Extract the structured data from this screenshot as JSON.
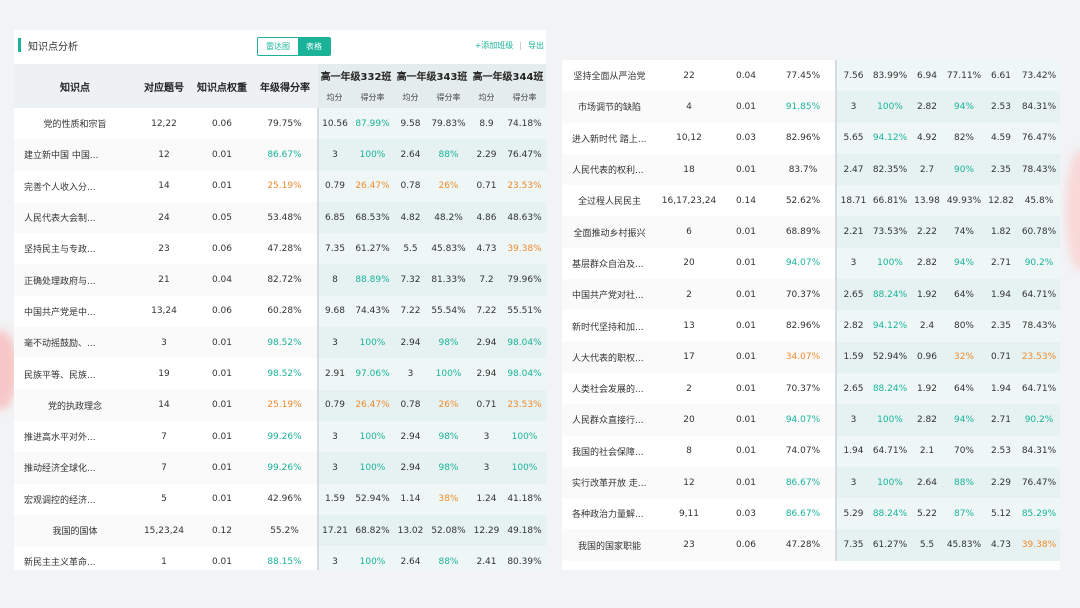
{
  "header": {
    "title": "知识点分析",
    "toggle": {
      "radar": "雷达图",
      "table": "表格"
    },
    "add_class": "+添加班级",
    "divider": "|",
    "export": "导出"
  },
  "columns": {
    "knowledge_point": "知识点",
    "question_no": "对应题号",
    "weight": "知识点权重",
    "grade_rate": "年级得分率",
    "classes": [
      "高一年级332班",
      "高一年级343班",
      "高一年级344班"
    ],
    "avg": "均分",
    "rate": "得分率"
  },
  "left_rows": [
    {
      "name": "党的性质和宗旨",
      "q": "12,22",
      "w": "0.06",
      "rate": "79.75%",
      "c": [
        [
          "10.56",
          "87.99%"
        ],
        [
          "9.58",
          "79.83%"
        ],
        [
          "8.9",
          "74.18%"
        ]
      ]
    },
    {
      "name": "建立新中国 中国...",
      "q": "12",
      "w": "0.01",
      "rate": "86.67%",
      "c": [
        [
          "3",
          "100%"
        ],
        [
          "2.64",
          "88%"
        ],
        [
          "2.29",
          "76.47%"
        ]
      ]
    },
    {
      "name": "完善个人收入分...",
      "q": "14",
      "w": "0.01",
      "rate": "25.19%",
      "c": [
        [
          "0.79",
          "26.47%"
        ],
        [
          "0.78",
          "26%"
        ],
        [
          "0.71",
          "23.53%"
        ]
      ]
    },
    {
      "name": "人民代表大会制...",
      "q": "24",
      "w": "0.05",
      "rate": "53.48%",
      "c": [
        [
          "6.85",
          "68.53%"
        ],
        [
          "4.82",
          "48.2%"
        ],
        [
          "4.86",
          "48.63%"
        ]
      ]
    },
    {
      "name": "坚持民主与专政...",
      "q": "23",
      "w": "0.06",
      "rate": "47.28%",
      "c": [
        [
          "7.35",
          "61.27%"
        ],
        [
          "5.5",
          "45.83%"
        ],
        [
          "4.73",
          "39.38%"
        ]
      ]
    },
    {
      "name": "正确处理政府与...",
      "q": "21",
      "w": "0.04",
      "rate": "82.72%",
      "c": [
        [
          "8",
          "88.89%"
        ],
        [
          "7.32",
          "81.33%"
        ],
        [
          "7.2",
          "79.96%"
        ]
      ]
    },
    {
      "name": "中国共产党是中...",
      "q": "13,24",
      "w": "0.06",
      "rate": "60.28%",
      "c": [
        [
          "9.68",
          "74.43%"
        ],
        [
          "7.22",
          "55.54%"
        ],
        [
          "7.22",
          "55.51%"
        ]
      ]
    },
    {
      "name": "毫不动摇鼓励、...",
      "q": "3",
      "w": "0.01",
      "rate": "98.52%",
      "c": [
        [
          "3",
          "100%"
        ],
        [
          "2.94",
          "98%"
        ],
        [
          "2.94",
          "98.04%"
        ]
      ]
    },
    {
      "name": "民族平等、民族...",
      "q": "19",
      "w": "0.01",
      "rate": "98.52%",
      "c": [
        [
          "2.91",
          "97.06%"
        ],
        [
          "3",
          "100%"
        ],
        [
          "2.94",
          "98.04%"
        ]
      ]
    },
    {
      "name": "党的执政理念",
      "q": "14",
      "w": "0.01",
      "rate": "25.19%",
      "c": [
        [
          "0.79",
          "26.47%"
        ],
        [
          "0.78",
          "26%"
        ],
        [
          "0.71",
          "23.53%"
        ]
      ]
    },
    {
      "name": "推进高水平对外...",
      "q": "7",
      "w": "0.01",
      "rate": "99.26%",
      "c": [
        [
          "3",
          "100%"
        ],
        [
          "2.94",
          "98%"
        ],
        [
          "3",
          "100%"
        ]
      ]
    },
    {
      "name": "推动经济全球化...",
      "q": "7",
      "w": "0.01",
      "rate": "99.26%",
      "c": [
        [
          "3",
          "100%"
        ],
        [
          "2.94",
          "98%"
        ],
        [
          "3",
          "100%"
        ]
      ]
    },
    {
      "name": "宏观调控的经济...",
      "q": "5",
      "w": "0.01",
      "rate": "42.96%",
      "c": [
        [
          "1.59",
          "52.94%"
        ],
        [
          "1.14",
          "38%"
        ],
        [
          "1.24",
          "41.18%"
        ]
      ]
    },
    {
      "name": "我国的国体",
      "q": "15,23,24",
      "w": "0.12",
      "rate": "55.2%",
      "c": [
        [
          "17.21",
          "68.82%"
        ],
        [
          "13.02",
          "52.08%"
        ],
        [
          "12.29",
          "49.18%"
        ]
      ]
    },
    {
      "name": "新民主主义革命...",
      "q": "1",
      "w": "0.01",
      "rate": "88.15%",
      "c": [
        [
          "3",
          "100%"
        ],
        [
          "2.64",
          "88%"
        ],
        [
          "2.41",
          "80.39%"
        ]
      ]
    }
  ],
  "right_rows": [
    {
      "name": "坚持全面从严治党",
      "q": "22",
      "w": "0.04",
      "rate": "77.45%",
      "c": [
        [
          "7.56",
          "83.99%"
        ],
        [
          "6.94",
          "77.11%"
        ],
        [
          "6.61",
          "73.42%"
        ]
      ]
    },
    {
      "name": "市场调节的缺陷",
      "q": "4",
      "w": "0.01",
      "rate": "91.85%",
      "c": [
        [
          "3",
          "100%"
        ],
        [
          "2.82",
          "94%"
        ],
        [
          "2.53",
          "84.31%"
        ]
      ]
    },
    {
      "name": "进入新时代 踏上...",
      "q": "10,12",
      "w": "0.03",
      "rate": "82.96%",
      "c": [
        [
          "5.65",
          "94.12%"
        ],
        [
          "4.92",
          "82%"
        ],
        [
          "4.59",
          "76.47%"
        ]
      ]
    },
    {
      "name": "人民代表的权利...",
      "q": "18",
      "w": "0.01",
      "rate": "83.7%",
      "c": [
        [
          "2.47",
          "82.35%"
        ],
        [
          "2.7",
          "90%"
        ],
        [
          "2.35",
          "78.43%"
        ]
      ]
    },
    {
      "name": "全过程人民民主",
      "q": "16,17,23,24",
      "w": "0.14",
      "rate": "52.62%",
      "c": [
        [
          "18.71",
          "66.81%"
        ],
        [
          "13.98",
          "49.93%"
        ],
        [
          "12.82",
          "45.8%"
        ]
      ]
    },
    {
      "name": "全面推动乡村振兴",
      "q": "6",
      "w": "0.01",
      "rate": "68.89%",
      "c": [
        [
          "2.21",
          "73.53%"
        ],
        [
          "2.22",
          "74%"
        ],
        [
          "1.82",
          "60.78%"
        ]
      ]
    },
    {
      "name": "基层群众自治及...",
      "q": "20",
      "w": "0.01",
      "rate": "94.07%",
      "c": [
        [
          "3",
          "100%"
        ],
        [
          "2.82",
          "94%"
        ],
        [
          "2.71",
          "90.2%"
        ]
      ]
    },
    {
      "name": "中国共产党对社...",
      "q": "2",
      "w": "0.01",
      "rate": "70.37%",
      "c": [
        [
          "2.65",
          "88.24%"
        ],
        [
          "1.92",
          "64%"
        ],
        [
          "1.94",
          "64.71%"
        ]
      ]
    },
    {
      "name": "新时代坚持和加...",
      "q": "13",
      "w": "0.01",
      "rate": "82.96%",
      "c": [
        [
          "2.82",
          "94.12%"
        ],
        [
          "2.4",
          "80%"
        ],
        [
          "2.35",
          "78.43%"
        ]
      ]
    },
    {
      "name": "人大代表的职权...",
      "q": "17",
      "w": "0.01",
      "rate": "34.07%",
      "c": [
        [
          "1.59",
          "52.94%"
        ],
        [
          "0.96",
          "32%"
        ],
        [
          "0.71",
          "23.53%"
        ]
      ]
    },
    {
      "name": "人类社会发展的...",
      "q": "2",
      "w": "0.01",
      "rate": "70.37%",
      "c": [
        [
          "2.65",
          "88.24%"
        ],
        [
          "1.92",
          "64%"
        ],
        [
          "1.94",
          "64.71%"
        ]
      ]
    },
    {
      "name": "人民群众直接行...",
      "q": "20",
      "w": "0.01",
      "rate": "94.07%",
      "c": [
        [
          "3",
          "100%"
        ],
        [
          "2.82",
          "94%"
        ],
        [
          "2.71",
          "90.2%"
        ]
      ]
    },
    {
      "name": "我国的社会保障...",
      "q": "8",
      "w": "0.01",
      "rate": "74.07%",
      "c": [
        [
          "1.94",
          "64.71%"
        ],
        [
          "2.1",
          "70%"
        ],
        [
          "2.53",
          "84.31%"
        ]
      ]
    },
    {
      "name": "实行改革开放 走...",
      "q": "12",
      "w": "0.01",
      "rate": "86.67%",
      "c": [
        [
          "3",
          "100%"
        ],
        [
          "2.64",
          "88%"
        ],
        [
          "2.29",
          "76.47%"
        ]
      ]
    },
    {
      "name": "各种政治力量解...",
      "q": "9,11",
      "w": "0.03",
      "rate": "86.67%",
      "c": [
        [
          "5.29",
          "88.24%"
        ],
        [
          "5.22",
          "87%"
        ],
        [
          "5.12",
          "85.29%"
        ]
      ]
    },
    {
      "name": "我国的国家职能",
      "q": "23",
      "w": "0.06",
      "rate": "47.28%",
      "c": [
        [
          "7.35",
          "61.27%"
        ],
        [
          "5.5",
          "45.83%"
        ],
        [
          "4.73",
          "39.38%"
        ]
      ]
    }
  ],
  "thresholds": {
    "high": 85,
    "low": 40
  },
  "colors": {
    "accent": "#1ab39a",
    "high": "#1ab39a",
    "low": "#f08a2c",
    "text": "#333333"
  }
}
